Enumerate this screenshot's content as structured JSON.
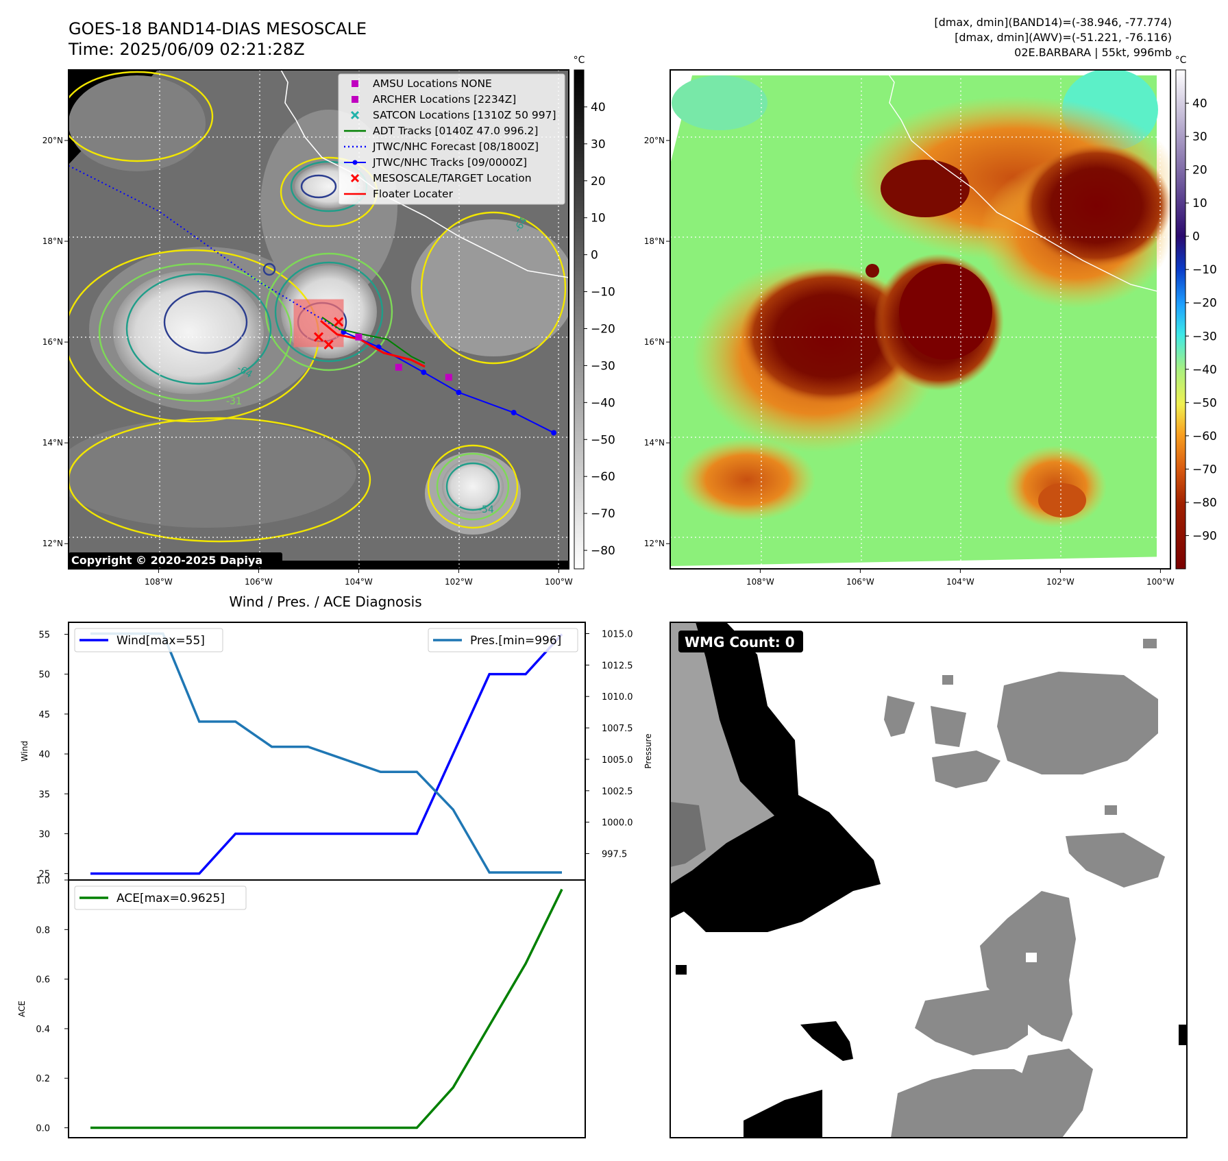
{
  "header": {
    "title": "GOES-18 BAND14-DIAS MESOSCALE",
    "time": "Time: 2025/06/09 02:21:28Z",
    "stat1": "[dmax, dmin](BAND14)=(-38.946, -77.774)",
    "stat2": "[dmax, dmin](AWV)=(-51.221, -76.116)",
    "storm": "02E.BARBARA | 55kt, 996mb"
  },
  "colors": {
    "gray_bg": "#6e6e6e",
    "cold_top": "#e8e8e8",
    "contour_yellow": "#f2e600",
    "contour_lightgreen": "#7ed957",
    "contour_teal": "#1f9e89",
    "contour_navy": "#2b3d8f",
    "floater": "#f07070",
    "track_blue": "#0000ff",
    "adt_green": "#008000",
    "magenta": "#c000c0",
    "red": "#ff0000",
    "awv_green": "#8cf07a",
    "awv_orange": "#e8871e",
    "awv_maroon": "#7a0a00",
    "wind_line": "#0000ff",
    "pres_line": "#1f77b4",
    "ace_line": "#008000"
  },
  "ir_panel": {
    "cbar_unit": "°C",
    "cbar_ticks": [
      40,
      30,
      20,
      10,
      0,
      -10,
      -20,
      -30,
      -40,
      -50,
      -60,
      -70,
      -80
    ],
    "cbar_range": [
      50,
      -85
    ],
    "lon_ticks": [
      "108°W",
      "106°W",
      "104°W",
      "102°W",
      "100°W"
    ],
    "lat_ticks": [
      "20°N",
      "18°N",
      "16°N",
      "14°N",
      "12°N"
    ],
    "lon_values": [
      -108,
      -106,
      -104,
      -102,
      -100
    ],
    "lat_values": [
      20,
      18,
      16,
      14,
      12
    ],
    "lon_range": [
      -109.8,
      -99.8
    ],
    "lat_range": [
      11.5,
      21.4
    ],
    "copyright": "Copyright © 2020-2025 Dapiya",
    "contour_labels": [
      "-64",
      "-31",
      "-54",
      "-64"
    ],
    "legend": [
      {
        "label": "AMSU Locations NONE",
        "marker": "square",
        "color": "#c000c0"
      },
      {
        "label": "ARCHER Locations [2234Z]",
        "marker": "square",
        "color": "#c000c0"
      },
      {
        "label": "SATCON Locations [1310Z 50 997]",
        "marker": "x",
        "color": "#20b2aa"
      },
      {
        "label": "ADT Tracks [0140Z 47.0 996.2]",
        "marker": "line",
        "color": "#008000"
      },
      {
        "label": "JTWC/NHC Forecast [08/1800Z]",
        "marker": "dotted",
        "color": "#0000ff"
      },
      {
        "label": "JTWC/NHC Tracks [09/0000Z]",
        "marker": "dotline",
        "color": "#0000ff"
      },
      {
        "label": "MESOSCALE/TARGET Location",
        "marker": "x",
        "color": "#ff0000"
      },
      {
        "label": "Floater Locater",
        "marker": "line",
        "color": "#ff0000"
      }
    ],
    "track_points": [
      {
        "lon": -100.1,
        "lat": 14.2
      },
      {
        "lon": -100.9,
        "lat": 14.6
      },
      {
        "lon": -102.0,
        "lat": 15.0
      },
      {
        "lon": -102.7,
        "lat": 15.4
      },
      {
        "lon": -103.6,
        "lat": 15.9
      },
      {
        "lon": -104.3,
        "lat": 16.2
      }
    ],
    "forecast_points": [
      {
        "lon": -104.3,
        "lat": 16.2
      },
      {
        "lon": -106.0,
        "lat": 17.2
      },
      {
        "lon": -108.0,
        "lat": 18.6
      },
      {
        "lon": -109.8,
        "lat": 19.5
      }
    ],
    "target_locations": [
      {
        "lon": -104.4,
        "lat": 16.4
      },
      {
        "lon": -104.8,
        "lat": 16.1
      },
      {
        "lon": -104.6,
        "lat": 15.95
      }
    ],
    "archer_locations": [
      {
        "lon": -104.0,
        "lat": 16.1
      },
      {
        "lon": -103.2,
        "lat": 15.5
      },
      {
        "lon": -102.2,
        "lat": 15.3
      }
    ],
    "floater_box": {
      "lon_min": -105.3,
      "lon_max": -104.3,
      "lat_min": 15.9,
      "lat_max": 16.85
    }
  },
  "awv_panel": {
    "cbar_unit": "°C",
    "cbar_ticks": [
      40,
      30,
      20,
      10,
      0,
      -10,
      -20,
      -30,
      -40,
      -50,
      -60,
      -70,
      -80,
      -90
    ],
    "cbar_range": [
      50,
      -100
    ],
    "lon_ticks": [
      "108°W",
      "106°W",
      "104°W",
      "102°W",
      "100°W"
    ],
    "lat_ticks": [
      "20°N",
      "18°N",
      "16°N",
      "14°N",
      "12°N"
    ]
  },
  "diag_title": "Wind / Pres. / ACE Diagnosis",
  "chart_data": [
    {
      "type": "line",
      "title": "Wind / Pres. / ACE Diagnosis",
      "ylabel": "Wind",
      "y2label": "Pressure",
      "ylim": [
        24.2,
        56.5
      ],
      "y2lim": [
        995.4,
        1015.9
      ],
      "y_ticks": [
        25,
        30,
        35,
        40,
        45,
        50,
        55
      ],
      "y2_ticks": [
        997.5,
        1000.0,
        1002.5,
        1005.0,
        1007.5,
        1010.0,
        1012.5,
        1015.0
      ],
      "x": [
        0,
        1,
        2,
        3,
        4,
        5,
        6,
        7,
        8,
        9,
        10,
        11,
        12,
        13
      ],
      "series": [
        {
          "name": "Wind[max=55]",
          "axis": "left",
          "values": [
            25,
            25,
            25,
            25,
            30,
            30,
            30,
            30,
            30,
            30,
            40,
            50,
            50,
            55
          ]
        },
        {
          "name": "Pres.[min=996]",
          "axis": "right",
          "values": [
            1015,
            1015,
            1015,
            1008,
            1008,
            1006,
            1006,
            1005,
            1004,
            1004,
            1001,
            996,
            996,
            996
          ]
        }
      ]
    },
    {
      "type": "line",
      "ylabel": "ACE",
      "ylim": [
        -0.04,
        1.0
      ],
      "y_ticks": [
        0.0,
        0.2,
        0.4,
        0.6,
        0.8,
        1.0
      ],
      "x": [
        0,
        1,
        2,
        3,
        4,
        5,
        6,
        7,
        8,
        9,
        10,
        11,
        12,
        13
      ],
      "series": [
        {
          "name": "ACE[max=0.9625]",
          "values": [
            0,
            0,
            0,
            0,
            0,
            0,
            0,
            0,
            0,
            0,
            0.1625,
            0.4125,
            0.6625,
            0.9625
          ]
        }
      ]
    }
  ],
  "wmg_panel": {
    "label": "WMG Count: 0"
  }
}
